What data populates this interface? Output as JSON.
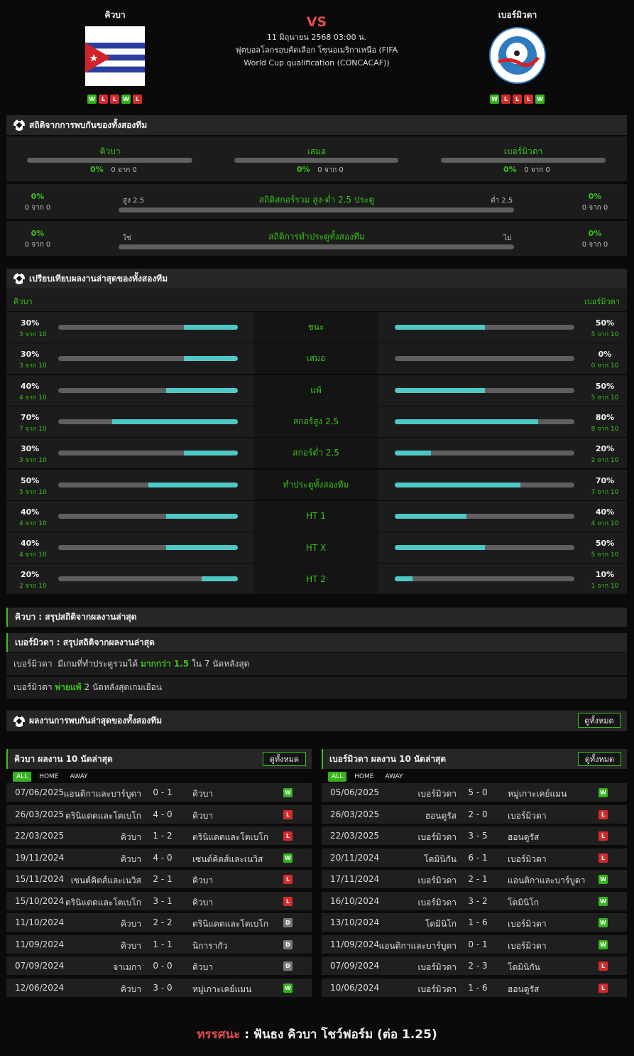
{
  "header": {
    "home_team": "คิวบา",
    "away_team": "เบอร์มิวดา",
    "vs": "VS",
    "datetime": "11 มิถุนายน 2568 03:00 น.",
    "competition": "ฟุตบอลโลกรอบคัดเลือก โซนอเมริกาเหนือ (FIFA World Cup qualification (CONCACAF))",
    "home_form": [
      "W",
      "L",
      "L",
      "W",
      "L"
    ],
    "away_form": [
      "W",
      "L",
      "L",
      "L",
      "W"
    ],
    "away_crest_text": "BERMUDA FOOTBALL ASSOCIATION"
  },
  "h2h": {
    "title": "สถิติจากการพบกันของทั้งสองทีม",
    "home_label": "คิวบา",
    "draw_label": "เสมอ",
    "away_label": "เบอร์มิวดา",
    "home_pct": "0%",
    "home_count": "0 จาก 0",
    "draw_pct": "0%",
    "draw_count": "0 จาก 0",
    "away_pct": "0%",
    "away_count": "0 จาก 0",
    "ou": {
      "title": "สถิติสกอร์รวม สูง-ต่ำ 2.5 ประตู",
      "left_label": "สูง 2.5",
      "right_label": "ต่ำ 2.5",
      "left_pct": "0%",
      "left_count": "0 จาก 0",
      "right_pct": "0%",
      "right_count": "0 จาก 0"
    },
    "btts": {
      "title": "สถิติการทำประตูทั้งสองทีม",
      "left_label": "ใช่",
      "right_label": "ไม่",
      "left_pct": "0%",
      "left_count": "0 จาก 0",
      "right_pct": "0%",
      "right_count": "0 จาก 0"
    }
  },
  "compare": {
    "title": "เปรียบเทียบผลงานล่าสุดของทั้งสองทีม",
    "home": "คิวบา",
    "away": "เบอร์มิวดา",
    "rows": [
      {
        "label": "ชนะ",
        "hp": "30%",
        "hc": "3 จาก 10",
        "hv": 0.3,
        "ap": "50%",
        "ac": "5 จาก 10",
        "av": 0.5
      },
      {
        "label": "เสมอ",
        "hp": "30%",
        "hc": "3 จาก 10",
        "hv": 0.3,
        "ap": "0%",
        "ac": "0 จาก 10",
        "av": 0
      },
      {
        "label": "แพ้",
        "hp": "40%",
        "hc": "4 จาก 10",
        "hv": 0.4,
        "ap": "50%",
        "ac": "5 จาก 10",
        "av": 0.5
      },
      {
        "label": "สกอร์สูง 2.5",
        "hp": "70%",
        "hc": "7 จาก 10",
        "hv": 0.7,
        "ap": "80%",
        "ac": "8 จาก 10",
        "av": 0.8
      },
      {
        "label": "สกอร์ต่ำ 2.5",
        "hp": "30%",
        "hc": "3 จาก 10",
        "hv": 0.3,
        "ap": "20%",
        "ac": "2 จาก 10",
        "av": 0.2
      },
      {
        "label": "ทำประตูทั้งสองทีม",
        "hp": "50%",
        "hc": "5 จาก 10",
        "hv": 0.5,
        "ap": "70%",
        "ac": "7 จาก 10",
        "av": 0.7
      },
      {
        "label": "HT 1",
        "hp": "40%",
        "hc": "4 จาก 10",
        "hv": 0.4,
        "ap": "40%",
        "ac": "4 จาก 10",
        "av": 0.4
      },
      {
        "label": "HT X",
        "hp": "40%",
        "hc": "4 จาก 10",
        "hv": 0.4,
        "ap": "50%",
        "ac": "5 จาก 10",
        "av": 0.5
      },
      {
        "label": "HT 2",
        "hp": "20%",
        "hc": "2 จาก 10",
        "hv": 0.2,
        "ap": "10%",
        "ac": "1 จาก 10",
        "av": 0.1
      }
    ]
  },
  "summary": {
    "home_title": "คิวบา : สรุปสถิติจากผลงานล่าสุด",
    "away_title": "เบอร์มิวดา : สรุปสถิติจากผลงานล่าสุด",
    "line1": {
      "a": "เบอร์มิวดา  มีเกมที่ทำประตูรวมได้ ",
      "b": "มากกว่า 1.5",
      "c": " ใน 7 นัดหลังสุด"
    },
    "line2": {
      "a": "เบอร์มิวดา ",
      "b": "พ่ายแพ้",
      "c": " 2 นัดหลังสุดเกมเยือน"
    }
  },
  "recent_h2h": {
    "title": "ผลงานการพบกันล่าสุดของทั้งสองทีม",
    "view_all": "ดูทั้งหมด"
  },
  "home_recent": {
    "title": "คิวบา ผลงาน 10 นัดล่าสุด",
    "view_all": "ดูทั้งหมด",
    "tabs": [
      "ALL",
      "HOME",
      "AWAY"
    ],
    "rows": [
      {
        "date": "07/06/2025",
        "home": "แอนติกาและบาร์บูดา",
        "score": "0 - 1",
        "away": "คิวบา",
        "res": "W"
      },
      {
        "date": "26/03/2025",
        "home": "ตรินิแดดและโตเบโก",
        "score": "4 - 0",
        "away": "คิวบา",
        "res": "L"
      },
      {
        "date": "22/03/2025",
        "home": "คิวบา",
        "score": "1 - 2",
        "away": "ตรินิแดดและโตเบโก",
        "res": "L"
      },
      {
        "date": "19/11/2024",
        "home": "คิวบา",
        "score": "4 - 0",
        "away": "เซนต์คิตส์และเนวิส",
        "res": "W"
      },
      {
        "date": "15/11/2024",
        "home": "เซนต์คิตส์และเนวิส",
        "score": "2 - 1",
        "away": "คิวบา",
        "res": "L"
      },
      {
        "date": "15/10/2024",
        "home": "ตรินิแดดและโตเบโก",
        "score": "3 - 1",
        "away": "คิวบา",
        "res": "L"
      },
      {
        "date": "11/10/2024",
        "home": "คิวบา",
        "score": "2 - 2",
        "away": "ตรินิแดดและโตเบโก",
        "res": "D"
      },
      {
        "date": "11/09/2024",
        "home": "คิวบา",
        "score": "1 - 1",
        "away": "นิการากัว",
        "res": "D"
      },
      {
        "date": "07/09/2024",
        "home": "จาเมกา",
        "score": "0 - 0",
        "away": "คิวบา",
        "res": "D"
      },
      {
        "date": "12/06/2024",
        "home": "คิวบา",
        "score": "3 - 0",
        "away": "หมู่เกาะเคย์แมน",
        "res": "W"
      }
    ]
  },
  "away_recent": {
    "title": "เบอร์มิวดา ผลงาน 10 นัดล่าสุด",
    "view_all": "ดูทั้งหมด",
    "tabs": [
      "ALL",
      "HOME",
      "AWAY"
    ],
    "rows": [
      {
        "date": "05/06/2025",
        "home": "เบอร์มิวดา",
        "score": "5 - 0",
        "away": "หมู่เกาะเคย์แมน",
        "res": "W"
      },
      {
        "date": "26/03/2025",
        "home": "ฮอนดูรัส",
        "score": "2 - 0",
        "away": "เบอร์มิวดา",
        "res": "L"
      },
      {
        "date": "22/03/2025",
        "home": "เบอร์มิวดา",
        "score": "3 - 5",
        "away": "ฮอนดูรัส",
        "res": "L"
      },
      {
        "date": "20/11/2024",
        "home": "โดมินิกัน",
        "score": "6 - 1",
        "away": "เบอร์มิวดา",
        "res": "L"
      },
      {
        "date": "17/11/2024",
        "home": "เบอร์มิวดา",
        "score": "2 - 1",
        "away": "แอนติกาและบาร์บูดา",
        "res": "W"
      },
      {
        "date": "16/10/2024",
        "home": "เบอร์มิวดา",
        "score": "3 - 2",
        "away": "โดมินิโก",
        "res": "W"
      },
      {
        "date": "13/10/2024",
        "home": "โดมินิโก",
        "score": "1 - 6",
        "away": "เบอร์มิวดา",
        "res": "W"
      },
      {
        "date": "11/09/2024",
        "home": "แอนติกาและบาร์บูดา",
        "score": "0 - 1",
        "away": "เบอร์มิวดา",
        "res": "W"
      },
      {
        "date": "07/09/2024",
        "home": "เบอร์มิวดา",
        "score": "2 - 3",
        "away": "โดมินิกัน",
        "res": "L"
      },
      {
        "date": "10/06/2024",
        "home": "เบอร์มิวดา",
        "score": "1 - 6",
        "away": "ฮอนดูรัส",
        "res": "L"
      }
    ]
  },
  "verdict": {
    "label": "ทรรศนะ",
    "sep": " : ",
    "text": "ฟันธง คิวบา โชว์ฟอร์ม (ต่อ 1.25)"
  },
  "colors": {
    "accent": "#38c21a",
    "bar_fill": "#4ec8c6",
    "win": "#35b51c",
    "loss": "#d62b2b",
    "draw": "#7a7a7a",
    "vs": "#e24b4b"
  }
}
